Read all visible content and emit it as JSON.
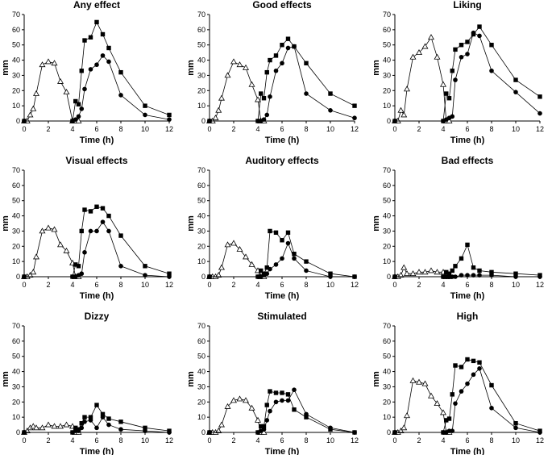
{
  "chart_data": [
    {
      "type": "line",
      "title": "Any effect",
      "xlabel": "Time (h)",
      "ylabel": "mm",
      "xlim": [
        0,
        12
      ],
      "ylim": [
        0,
        70
      ],
      "xticks": [
        "0",
        "2",
        "4",
        "6",
        "8",
        "10",
        "12"
      ],
      "yticks": [
        "0",
        "10",
        "20",
        "30",
        "40",
        "50",
        "60",
        "70"
      ],
      "series": [
        {
          "marker": "triangle-open",
          "x": [
            0,
            0.25,
            0.5,
            0.75,
            1,
            1.5,
            2,
            2.5,
            3,
            3.5,
            4,
            4.25,
            4.5
          ],
          "y": [
            0,
            0,
            4,
            8,
            18,
            37,
            39,
            38,
            26,
            19,
            0,
            0,
            0
          ]
        },
        {
          "marker": "square-filled",
          "x": [
            0,
            4,
            4.25,
            4.5,
            4.75,
            5,
            5.5,
            6,
            6.5,
            7,
            8,
            10,
            12
          ],
          "y": [
            0,
            0,
            13,
            11,
            33,
            53,
            55,
            65,
            57,
            48,
            32,
            10,
            4
          ]
        },
        {
          "marker": "circle-filled",
          "x": [
            0,
            4,
            4.25,
            4.5,
            4.75,
            5,
            5.5,
            6,
            6.5,
            7,
            8,
            10,
            12
          ],
          "y": [
            0,
            0,
            1,
            3,
            8,
            21,
            34,
            37,
            43,
            39,
            17,
            4,
            1
          ]
        }
      ]
    },
    {
      "type": "line",
      "title": "Good effects",
      "xlabel": "Time (h)",
      "ylabel": "mm",
      "xlim": [
        0,
        12
      ],
      "ylim": [
        0,
        70
      ],
      "xticks": [
        "0",
        "2",
        "4",
        "6",
        "8",
        "10",
        "12"
      ],
      "yticks": [
        "0",
        "10",
        "20",
        "30",
        "40",
        "50",
        "60",
        "70"
      ],
      "series": [
        {
          "marker": "triangle-open",
          "x": [
            0,
            0.25,
            0.5,
            0.75,
            1,
            1.5,
            2,
            2.5,
            3,
            3.5,
            4,
            4.25,
            4.5
          ],
          "y": [
            0,
            0,
            2,
            7,
            15,
            30,
            39,
            37,
            35,
            24,
            14,
            0,
            0
          ]
        },
        {
          "marker": "square-filled",
          "x": [
            0,
            4,
            4.25,
            4.5,
            4.75,
            5,
            5.5,
            6,
            6.5,
            7,
            8,
            10,
            12
          ],
          "y": [
            0,
            0,
            18,
            15,
            32,
            40,
            43,
            50,
            54,
            49,
            38,
            18,
            10
          ]
        },
        {
          "marker": "circle-filled",
          "x": [
            0,
            4,
            4.25,
            4.5,
            4.75,
            5,
            5.5,
            6,
            6.5,
            7,
            8,
            10,
            12
          ],
          "y": [
            0,
            0,
            0,
            1,
            4,
            16,
            33,
            38,
            48,
            49,
            18,
            7,
            2
          ]
        }
      ]
    },
    {
      "type": "line",
      "title": "Liking",
      "xlabel": "Time (h)",
      "ylabel": "mm",
      "xlim": [
        0,
        12
      ],
      "ylim": [
        0,
        70
      ],
      "xticks": [
        "0",
        "2",
        "4",
        "6",
        "8",
        "10",
        "12"
      ],
      "yticks": [
        "0",
        "10",
        "20",
        "30",
        "40",
        "50",
        "60",
        "70"
      ],
      "series": [
        {
          "marker": "triangle-open",
          "x": [
            0,
            0.25,
            0.5,
            0.75,
            1,
            1.5,
            2,
            2.5,
            3,
            3.5,
            4,
            4.25,
            4.5
          ],
          "y": [
            0,
            0,
            7,
            4,
            21,
            42,
            45,
            49,
            55,
            42,
            24,
            0,
            0
          ]
        },
        {
          "marker": "square-filled",
          "x": [
            0,
            4,
            4.25,
            4.5,
            4.75,
            5,
            5.5,
            6,
            6.5,
            7,
            8,
            10,
            12
          ],
          "y": [
            0,
            0,
            18,
            15,
            33,
            47,
            50,
            52,
            57,
            62,
            50,
            27,
            16
          ]
        },
        {
          "marker": "circle-filled",
          "x": [
            0,
            4,
            4.25,
            4.5,
            4.75,
            5,
            5.5,
            6,
            6.5,
            7,
            8,
            10,
            12
          ],
          "y": [
            0,
            0,
            1,
            2,
            3,
            27,
            42,
            44,
            58,
            56,
            33,
            19,
            5
          ]
        }
      ]
    },
    {
      "type": "line",
      "title": "Visual effects",
      "xlabel": "Time (h)",
      "ylabel": "mm",
      "xlim": [
        0,
        12
      ],
      "ylim": [
        0,
        70
      ],
      "xticks": [
        "0",
        "2",
        "4",
        "6",
        "8",
        "10",
        "12"
      ],
      "yticks": [
        "0",
        "10",
        "20",
        "30",
        "40",
        "50",
        "60",
        "70"
      ],
      "series": [
        {
          "marker": "triangle-open",
          "x": [
            0,
            0.25,
            0.5,
            0.75,
            1,
            1.5,
            2,
            2.5,
            3,
            3.5,
            4,
            4.25,
            4.5
          ],
          "y": [
            0,
            0,
            1,
            3,
            13,
            30,
            32,
            31,
            21,
            17,
            9,
            0,
            0
          ]
        },
        {
          "marker": "square-filled",
          "x": [
            0,
            4,
            4.25,
            4.5,
            4.75,
            5,
            5.5,
            6,
            6.5,
            7,
            8,
            10,
            12
          ],
          "y": [
            0,
            0,
            8,
            7,
            30,
            44,
            43,
            46,
            45,
            40,
            27,
            7,
            2
          ]
        },
        {
          "marker": "circle-filled",
          "x": [
            0,
            4,
            4.25,
            4.5,
            4.75,
            5,
            5.5,
            6,
            6.5,
            7,
            8,
            10,
            12
          ],
          "y": [
            0,
            0,
            0,
            1,
            2,
            16,
            30,
            30,
            36,
            30,
            7,
            1,
            0
          ]
        }
      ]
    },
    {
      "type": "line",
      "title": "Auditory effects",
      "xlabel": "Time (h)",
      "ylabel": "mm",
      "xlim": [
        0,
        12
      ],
      "ylim": [
        0,
        70
      ],
      "xticks": [
        "0",
        "2",
        "4",
        "6",
        "8",
        "10",
        "12"
      ],
      "yticks": [
        "0",
        "10",
        "20",
        "30",
        "40",
        "50",
        "60",
        "70"
      ],
      "series": [
        {
          "marker": "triangle-open",
          "x": [
            0,
            0.25,
            0.5,
            0.75,
            1,
            1.5,
            2,
            2.5,
            3,
            3.5,
            4,
            4.25,
            4.5
          ],
          "y": [
            0,
            0,
            0,
            1,
            6,
            21,
            22,
            18,
            13,
            8,
            4,
            0,
            0
          ]
        },
        {
          "marker": "square-filled",
          "x": [
            0,
            4,
            4.25,
            4.5,
            4.75,
            5,
            5.5,
            6,
            6.5,
            7,
            8,
            10,
            12
          ],
          "y": [
            0,
            0,
            4,
            2,
            6,
            30,
            29,
            24,
            29,
            15,
            10,
            2,
            0
          ]
        },
        {
          "marker": "circle-filled",
          "x": [
            0,
            4,
            4.25,
            4.5,
            4.75,
            5,
            5.5,
            6,
            6.5,
            7,
            8,
            10,
            12
          ],
          "y": [
            0,
            0,
            0,
            1,
            2,
            5,
            8,
            12,
            22,
            12,
            4,
            0,
            0
          ]
        }
      ]
    },
    {
      "type": "line",
      "title": "Bad effects",
      "xlabel": "Time (h)",
      "ylabel": "mm",
      "xlim": [
        0,
        12
      ],
      "ylim": [
        0,
        70
      ],
      "xticks": [
        "0",
        "2",
        "4",
        "6",
        "8",
        "10",
        "12"
      ],
      "yticks": [
        "0",
        "10",
        "20",
        "30",
        "40",
        "50",
        "60",
        "70"
      ],
      "series": [
        {
          "marker": "triangle-open",
          "x": [
            0,
            0.25,
            0.5,
            0.75,
            1,
            1.5,
            2,
            2.5,
            3,
            3.5,
            4,
            4.25,
            4.5
          ],
          "y": [
            0,
            0,
            1,
            6,
            2,
            2,
            3,
            3,
            4,
            3,
            3,
            0,
            0
          ]
        },
        {
          "marker": "square-filled",
          "x": [
            0,
            4,
            4.25,
            4.5,
            4.75,
            5,
            5.5,
            6,
            6.5,
            7,
            8,
            10,
            12
          ],
          "y": [
            0,
            0,
            3,
            2,
            4,
            7,
            12,
            21,
            6,
            4,
            3,
            2,
            1
          ]
        },
        {
          "marker": "circle-filled",
          "x": [
            0,
            4,
            4.25,
            4.5,
            4.75,
            5,
            5.5,
            6,
            6.5,
            7,
            8,
            10,
            12
          ],
          "y": [
            0,
            0,
            0,
            0,
            0,
            0,
            1,
            1,
            1,
            1,
            1,
            0,
            0
          ]
        }
      ]
    },
    {
      "type": "line",
      "title": "Dizzy",
      "xlabel": "Time (h)",
      "ylabel": "mm",
      "xlim": [
        0,
        12
      ],
      "ylim": [
        0,
        70
      ],
      "xticks": [
        "0",
        "2",
        "4",
        "6",
        "8",
        "10",
        "12"
      ],
      "yticks": [
        "0",
        "10",
        "20",
        "30",
        "40",
        "50",
        "60",
        "70"
      ],
      "series": [
        {
          "marker": "triangle-open",
          "x": [
            0,
            0.25,
            0.5,
            0.75,
            1,
            1.5,
            2,
            2.5,
            3,
            3.5,
            4,
            4.25,
            4.5
          ],
          "y": [
            0,
            1,
            3,
            4,
            3,
            3,
            5,
            4,
            4,
            5,
            4,
            0,
            0
          ]
        },
        {
          "marker": "square-filled",
          "x": [
            0,
            4,
            4.25,
            4.5,
            4.75,
            5,
            5.5,
            6,
            6.5,
            7,
            8,
            10,
            12
          ],
          "y": [
            0,
            0,
            3,
            2,
            6,
            10,
            10,
            18,
            12,
            9,
            7,
            3,
            1
          ]
        },
        {
          "marker": "circle-filled",
          "x": [
            0,
            4,
            4.25,
            4.5,
            4.75,
            5,
            5.5,
            6,
            6.5,
            7,
            8,
            10,
            12
          ],
          "y": [
            0,
            0,
            1,
            1,
            3,
            7,
            8,
            3,
            10,
            5,
            2,
            1,
            0
          ]
        }
      ]
    },
    {
      "type": "line",
      "title": "Stimulated",
      "xlabel": "Time (h)",
      "ylabel": "mm",
      "xlim": [
        0,
        12
      ],
      "ylim": [
        0,
        70
      ],
      "xticks": [
        "0",
        "2",
        "4",
        "6",
        "8",
        "10",
        "12"
      ],
      "yticks": [
        "0",
        "10",
        "20",
        "30",
        "40",
        "50",
        "60",
        "70"
      ],
      "series": [
        {
          "marker": "triangle-open",
          "x": [
            0,
            0.25,
            0.5,
            0.75,
            1,
            1.5,
            2,
            2.5,
            3,
            3.5,
            4,
            4.25,
            4.5
          ],
          "y": [
            0,
            0,
            0,
            1,
            5,
            17,
            21,
            22,
            21,
            16,
            8,
            0,
            0
          ]
        },
        {
          "marker": "square-filled",
          "x": [
            0,
            4,
            4.25,
            4.5,
            4.75,
            5,
            5.5,
            6,
            6.5,
            7,
            8,
            10,
            12
          ],
          "y": [
            0,
            0,
            4,
            4,
            18,
            27,
            26,
            26,
            25,
            15,
            10,
            2,
            0
          ]
        },
        {
          "marker": "circle-filled",
          "x": [
            0,
            4,
            4.25,
            4.5,
            4.75,
            5,
            5.5,
            6,
            6.5,
            7,
            8,
            10,
            12
          ],
          "y": [
            0,
            0,
            1,
            2,
            8,
            14,
            20,
            21,
            21,
            28,
            12,
            3,
            0
          ]
        }
      ]
    },
    {
      "type": "line",
      "title": "High",
      "xlabel": "Time (h)",
      "ylabel": "mm",
      "xlim": [
        0,
        12
      ],
      "ylim": [
        0,
        70
      ],
      "xticks": [
        "0",
        "2",
        "4",
        "6",
        "8",
        "10",
        "12"
      ],
      "yticks": [
        "0",
        "10",
        "20",
        "30",
        "40",
        "50",
        "60",
        "70"
      ],
      "series": [
        {
          "marker": "triangle-open",
          "x": [
            0,
            0.25,
            0.5,
            0.75,
            1,
            1.5,
            2,
            2.5,
            3,
            3.5,
            4,
            4.25,
            4.5
          ],
          "y": [
            0,
            0,
            1,
            3,
            11,
            34,
            33,
            32,
            24,
            19,
            13,
            0,
            0
          ]
        },
        {
          "marker": "square-filled",
          "x": [
            0,
            4,
            4.25,
            4.5,
            4.75,
            5,
            5.5,
            6,
            6.5,
            7,
            8,
            10,
            12
          ],
          "y": [
            0,
            0,
            8,
            9,
            25,
            44,
            43,
            48,
            47,
            46,
            31,
            6,
            1
          ]
        },
        {
          "marker": "circle-filled",
          "x": [
            0,
            4,
            4.25,
            4.5,
            4.75,
            5,
            5.5,
            6,
            6.5,
            7,
            8,
            10,
            12
          ],
          "y": [
            0,
            0,
            0,
            1,
            1,
            19,
            27,
            32,
            38,
            42,
            16,
            3,
            0
          ]
        }
      ]
    }
  ]
}
